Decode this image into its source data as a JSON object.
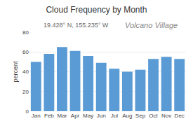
{
  "chart_data": {
    "type": "bar",
    "title": "Cloud Frequency by Month",
    "subtitle": "19.428° N, 155.235° W",
    "annotations": [
      "Volcano Village"
    ],
    "categories": [
      "Jan",
      "Feb",
      "Mar",
      "Apr",
      "May",
      "Jun",
      "Jul",
      "Aug",
      "Sep",
      "Oct",
      "Nov",
      "Dec"
    ],
    "values": [
      50,
      58,
      65,
      61,
      56,
      49,
      43,
      40,
      42,
      53,
      55,
      53
    ],
    "color": "#5b9bd5",
    "ylabel": "percent",
    "ylim": [
      0,
      80
    ],
    "yticks": [
      0,
      20,
      40,
      60,
      80
    ],
    "grid": true
  }
}
